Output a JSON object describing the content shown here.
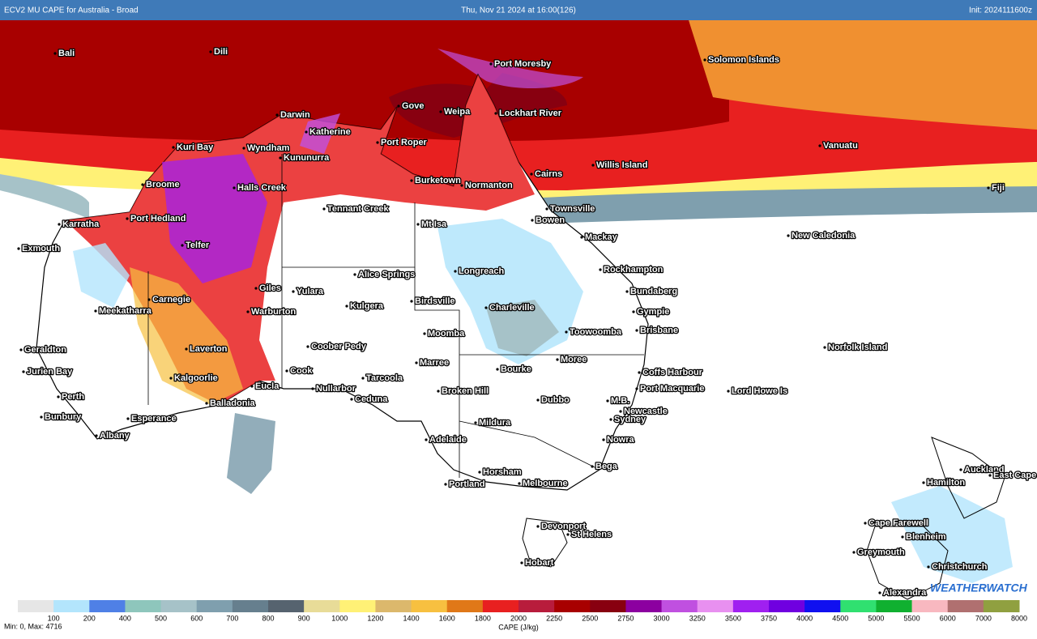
{
  "header": {
    "title": "ECV2 MU CAPE for Australia - Broad",
    "valid": "Thu, Nov 21 2024 at 16:00(126)",
    "init": "Init: 2024111600z"
  },
  "places": [
    "Bali",
    "Dili",
    "Port Moresby",
    "Solomon Islands",
    "Darwin",
    "Gove",
    "Weipa",
    "Lockhart River",
    "Katherine",
    "Port Roper",
    "Kuri Bay",
    "Wyndham",
    "Kununurra",
    "Vanuatu",
    "Cairns",
    "Willis Island",
    "Broome",
    "Halls Creek",
    "Burketown",
    "Normanton",
    "Fiji",
    "Karratha",
    "Port Hedland",
    "Tennant Creek",
    "Mt Isa",
    "Bowen",
    "Townsville",
    "Exmouth",
    "Telfer",
    "Mackay",
    "New Caledonia",
    "Longreach",
    "Rockhampton",
    "Alice Springs",
    "Giles",
    "Yulara",
    "Bundaberg",
    "Meekatharra",
    "Carnegie",
    "Warburton",
    "Kulgera",
    "Birdsville",
    "Charleville",
    "Gympie",
    "Brisbane",
    "Moomba",
    "Toowoomba",
    "Norfolk Island",
    "Geraldton",
    "Coober Pedy",
    "Laverton",
    "Marree",
    "Moree",
    "Bourke",
    "Coffs Harbour",
    "Jurien Bay",
    "Cook",
    "Kalgoorlie",
    "Tarcoola",
    "Eucla",
    "Nullarbor",
    "Port Macquarie",
    "Lord Howe Is",
    "Broken Hill",
    "Perth",
    "Ceduna",
    "Dubbo",
    "Balladonia",
    "M.B.",
    "Newcastle",
    "Esperance",
    "Bunbury",
    "Sydney",
    "Mildura",
    "Albany",
    "Adelaide",
    "Nowra",
    "Bega",
    "Auckland",
    "East Cape",
    "Horsham",
    "Portland",
    "Melbourne",
    "Hamilton",
    "Cape Farewell",
    "Devonport",
    "St Helens",
    "Blenheim",
    "Greymouth",
    "Hobart",
    "Christchurch",
    "Alexandra"
  ],
  "legend": {
    "title": "CAPE (J/kg)",
    "stops": [
      {
        "value": 100,
        "color": "#e6e6e6"
      },
      {
        "value": 200,
        "color": "#b3e5fc"
      },
      {
        "value": 400,
        "color": "#4f80e6"
      },
      {
        "value": 500,
        "color": "#8ec6bc"
      },
      {
        "value": 600,
        "color": "#a6c2c8"
      },
      {
        "value": 700,
        "color": "#7f9fae"
      },
      {
        "value": 800,
        "color": "#667f8e"
      },
      {
        "value": 900,
        "color": "#56636f"
      },
      {
        "value": 1000,
        "color": "#e8dc98"
      },
      {
        "value": 1200,
        "color": "#fff176"
      },
      {
        "value": 1400,
        "color": "#dcb86c"
      },
      {
        "value": 1600,
        "color": "#f7c040"
      },
      {
        "value": 1800,
        "color": "#e07818"
      },
      {
        "value": 2000,
        "color": "#e82020"
      },
      {
        "value": 2250,
        "color": "#b81c3c"
      },
      {
        "value": 2500,
        "color": "#a80000"
      },
      {
        "value": 2750,
        "color": "#880010"
      },
      {
        "value": 3000,
        "color": "#8c00a0"
      },
      {
        "value": 3250,
        "color": "#c050e0"
      },
      {
        "value": 3500,
        "color": "#e890f0"
      },
      {
        "value": 3750,
        "color": "#a020f0"
      },
      {
        "value": 4000,
        "color": "#7000e0"
      },
      {
        "value": 4500,
        "color": "#1010f0"
      },
      {
        "value": 5000,
        "color": "#30e070"
      },
      {
        "value": 5500,
        "color": "#10b030"
      },
      {
        "value": 6000,
        "color": "#f8b8c0"
      },
      {
        "value": 7000,
        "color": "#b07070"
      },
      {
        "value": 8000,
        "color": "#90a040"
      }
    ]
  },
  "footer": {
    "stats": "Min: 0, Max: 4716"
  },
  "logo": "WEATHERWATCH"
}
